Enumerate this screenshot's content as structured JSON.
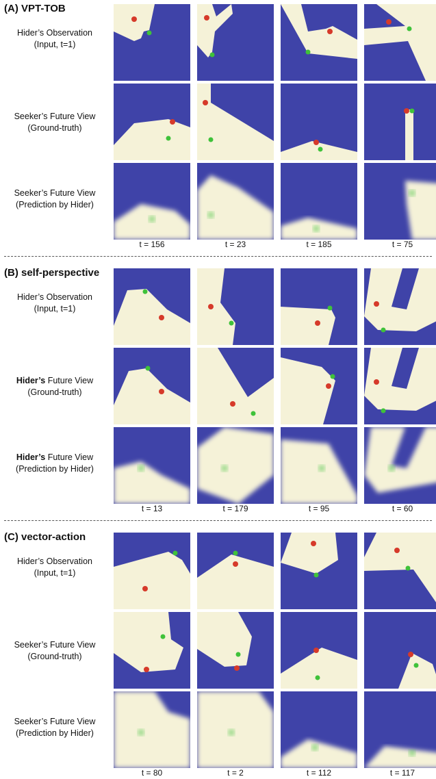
{
  "sections": [
    {
      "title": "(A) VPT-TOB",
      "rows": [
        {
          "bold": "",
          "line1": "Hider’s Observation",
          "line2": "(Input, t=1)"
        },
        {
          "bold": "",
          "line1": "Seeker’s Future View",
          "line2": "(Ground-truth)"
        },
        {
          "bold": "",
          "line1": "Seeker’s Future View",
          "line2": "(Prediction by Hider)"
        }
      ],
      "times": [
        "t = 156",
        "t = 23",
        "t = 185",
        "t = 75"
      ]
    },
    {
      "title": "(B) self-perspective",
      "rows": [
        {
          "bold": "",
          "line1": "Hider’s Observation",
          "line2": "(Input, t=1)"
        },
        {
          "bold": "Hider’s",
          "line1": " Future View",
          "line2": "(Ground-truth)"
        },
        {
          "bold": "Hider’s",
          "line1": " Future View",
          "line2": "(Prediction by Hider)"
        }
      ],
      "times": [
        "t = 13",
        "t = 179",
        "t = 95",
        "t = 60"
      ]
    },
    {
      "title": "(C) vector-action",
      "rows": [
        {
          "bold": "",
          "line1": "Hider’s Observation",
          "line2": "(Input, t=1)"
        },
        {
          "bold": "",
          "line1": "Seeker’s Future View",
          "line2": "(Ground-truth)"
        },
        {
          "bold": "",
          "line1": "Seeker’s Future View",
          "line2": "(Prediction by Hider)"
        }
      ],
      "times": [
        "t = 80",
        "t = 2",
        "t = 112",
        "t = 117"
      ]
    }
  ],
  "colors": {
    "floor": "#3f43a8",
    "visible_area": "#f5f2d8",
    "hider_agent": "#d63a2a",
    "seeker_agent": "#3fc23a"
  }
}
